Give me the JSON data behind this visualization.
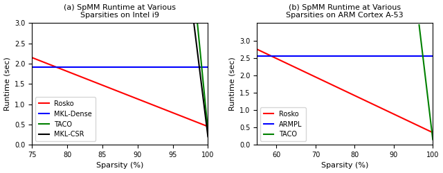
{
  "fig_width": 6.4,
  "fig_height": 2.5,
  "dpi": 100,
  "plot_a": {
    "title": "(a) SpMM Runtime at Various\nSparsities on Intel i9",
    "xlabel": "Sparsity (%)",
    "ylabel": "Runtime (sec)",
    "xlim": [
      75,
      100
    ],
    "ylim": [
      0.0,
      3.0
    ],
    "xticks": [
      75,
      80,
      85,
      90,
      95,
      100
    ],
    "yticks": [
      0.0,
      0.5,
      1.0,
      1.5,
      2.0,
      2.5,
      3.0
    ],
    "lines": {
      "Rosko": {
        "color": "red",
        "x": [
          75,
          100
        ],
        "y": [
          2.15,
          0.45
        ]
      },
      "MKL-Dense": {
        "color": "blue",
        "x": [
          75,
          100
        ],
        "y": [
          1.92,
          1.92
        ]
      },
      "TACO": {
        "color": "green",
        "x": [
          98.5,
          100
        ],
        "y": [
          3.0,
          0.35
        ]
      },
      "MKL-CSR": {
        "color": "black",
        "x": [
          98.0,
          100
        ],
        "y": [
          3.0,
          0.2
        ]
      }
    },
    "legend_order": [
      "Rosko",
      "MKL-Dense",
      "TACO",
      "MKL-CSR"
    ]
  },
  "plot_b": {
    "title": "(b) SpMM Runtime at Various\nSparsities on ARM Cortex A-53",
    "xlabel": "Sparsity (%)",
    "ylabel": "Runtime (sec)",
    "xlim": [
      55,
      100
    ],
    "ylim": [
      0.0,
      3.5
    ],
    "xticks": [
      60,
      70,
      80,
      90,
      100
    ],
    "yticks": [
      0.0,
      0.5,
      1.0,
      1.5,
      2.0,
      2.5,
      3.0
    ],
    "lines": {
      "Rosko": {
        "color": "red",
        "x": [
          55,
          100
        ],
        "y": [
          2.75,
          0.35
        ]
      },
      "ARMPL": {
        "color": "blue",
        "x": [
          55,
          100
        ],
        "y": [
          2.55,
          2.55
        ]
      },
      "TACO": {
        "color": "green",
        "x": [
          96.5,
          100
        ],
        "y": [
          3.45,
          0.15
        ]
      }
    },
    "legend_order": [
      "Rosko",
      "ARMPL",
      "TACO"
    ]
  },
  "title_fontsize": 8,
  "label_fontsize": 8,
  "tick_fontsize": 7,
  "legend_fontsize": 7,
  "linewidth": 1.5
}
